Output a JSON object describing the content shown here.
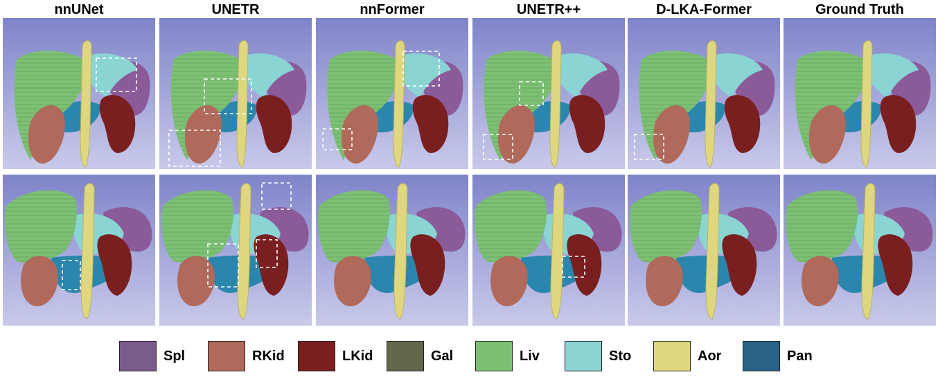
{
  "columns": [
    {
      "title": "nnUNet"
    },
    {
      "title": "UNETR"
    },
    {
      "title": "nnFormer"
    },
    {
      "title": "UNETR++"
    },
    {
      "title": "D-LKA-Former"
    },
    {
      "title": "Ground Truth"
    }
  ],
  "legend": [
    {
      "label": "Spl",
      "color": "#7b5a8c"
    },
    {
      "label": "RKid",
      "color": "#b0695a"
    },
    {
      "label": "LKid",
      "color": "#7a1f1f"
    },
    {
      "label": "Gal",
      "color": "#62694a"
    },
    {
      "label": "Liv",
      "color": "#7cc073"
    },
    {
      "label": "Sto",
      "color": "#8ad4d4"
    },
    {
      "label": "Aor",
      "color": "#dfd780"
    },
    {
      "label": "Pan",
      "color": "#2a6286"
    }
  ],
  "colors": {
    "panel_bg_top": "#7f84c9",
    "panel_bg_bottom": "#c8c9ea",
    "liver": "#7cc073",
    "liver_dark": "#5fa459",
    "spleen": "#8a5b98",
    "rkid": "#b0695a",
    "lkid": "#7a1f1f",
    "stomach": "#8ad4d4",
    "aorta": "#dfd780",
    "pancreas": "#2a86ad"
  }
}
